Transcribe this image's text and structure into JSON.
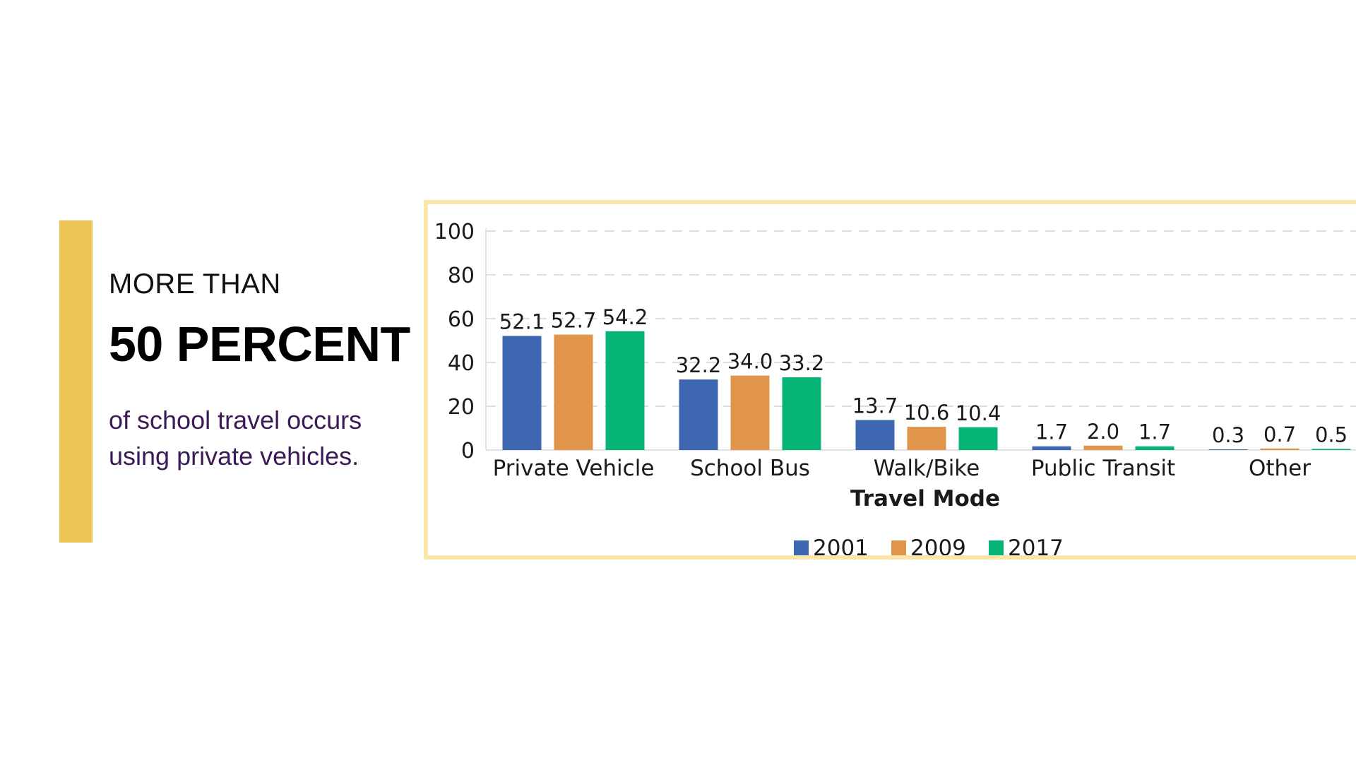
{
  "left_panel": {
    "kicker": "MORE THAN",
    "headline": "50 PERCENT",
    "subtext_line1": "of school travel occurs",
    "subtext_line2": "using private vehicles.",
    "accent_color": "#ebc455",
    "frame_color": "#f9e6a8"
  },
  "chart_data": {
    "type": "bar",
    "title": "",
    "xlabel": "Travel Mode",
    "ylabel": "",
    "ylim": [
      0,
      100
    ],
    "yticks": [
      0,
      20,
      40,
      60,
      80,
      100
    ],
    "grid": true,
    "legend_position": "bottom",
    "categories": [
      "Private Vehicle",
      "School Bus",
      "Walk/Bike",
      "Public Transit",
      "Other"
    ],
    "series": [
      {
        "name": "2001",
        "color": "#3d67b1",
        "values": [
          52.1,
          32.2,
          13.7,
          1.7,
          0.3
        ],
        "labels": [
          "52.1",
          "32.2",
          "13.7",
          "1.7",
          "0.3"
        ]
      },
      {
        "name": "2009",
        "color": "#e0954a",
        "values": [
          52.7,
          34.0,
          10.6,
          2.0,
          0.7
        ],
        "labels": [
          "52.7",
          "34.0",
          "10.6",
          "2.0",
          "0.7"
        ]
      },
      {
        "name": "2017",
        "color": "#06b575",
        "values": [
          54.2,
          33.2,
          10.4,
          1.7,
          0.5
        ],
        "labels": [
          "54.2",
          "33.2",
          "10.4",
          "1.7",
          "0.5"
        ]
      }
    ]
  }
}
